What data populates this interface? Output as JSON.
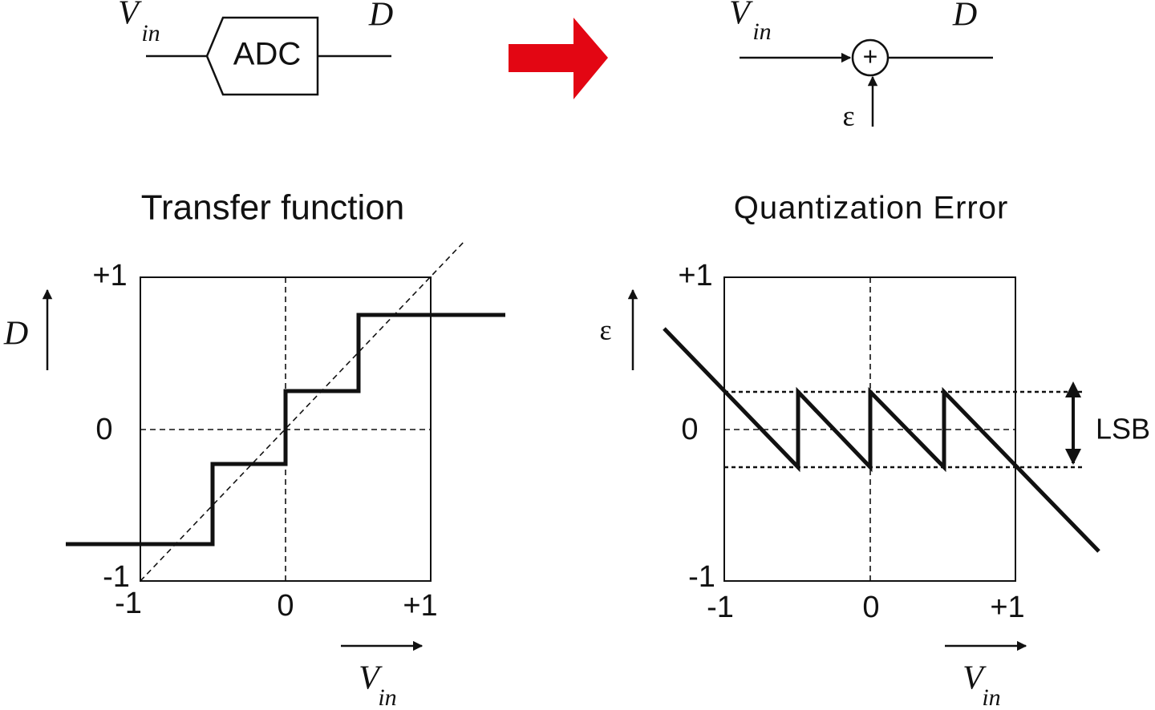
{
  "top_left": {
    "input": {
      "symbol": "V",
      "subscript": "in"
    },
    "output": "D",
    "block": "ADC"
  },
  "top_right": {
    "input": {
      "symbol": "V",
      "subscript": "in"
    },
    "output": "D",
    "summer": "+",
    "error": "ε"
  },
  "transfer_function": {
    "title": "Transfer function",
    "y_label": "D",
    "x_label": {
      "symbol": "V",
      "subscript": "in"
    },
    "y_ticks": [
      "+1",
      "0",
      "-1"
    ],
    "x_ticks": [
      "-1",
      "0",
      "+1"
    ]
  },
  "quantization_error": {
    "title": "Quantization Error",
    "y_label": "ε",
    "x_label": {
      "symbol": "V",
      "subscript": "in"
    },
    "y_ticks": [
      "+1",
      "0",
      "-1"
    ],
    "x_ticks": [
      "-1",
      "0",
      "+1"
    ],
    "range_label": "LSB"
  }
}
